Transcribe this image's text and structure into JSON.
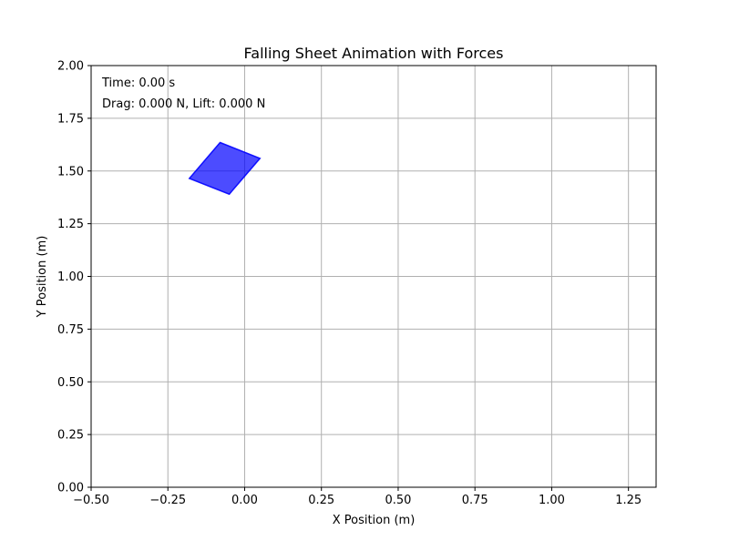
{
  "chart_data": {
    "type": "scatter",
    "title": "Falling Sheet Animation with Forces",
    "xlabel": "X Position (m)",
    "ylabel": "Y Position (m)",
    "xlim": [
      -0.5,
      1.34
    ],
    "ylim": [
      0.0,
      2.0
    ],
    "grid": true,
    "x_ticks": [
      -0.5,
      -0.25,
      0.0,
      0.25,
      0.5,
      0.75,
      1.0,
      1.25
    ],
    "x_tick_labels": [
      "−0.50",
      "−0.25",
      "0.00",
      "0.25",
      "0.50",
      "0.75",
      "1.00",
      "1.25"
    ],
    "y_ticks": [
      0.0,
      0.25,
      0.5,
      0.75,
      1.0,
      1.25,
      1.5,
      1.75,
      2.0
    ],
    "y_tick_labels": [
      "0.00",
      "0.25",
      "0.50",
      "0.75",
      "1.00",
      "1.25",
      "1.50",
      "1.75",
      "2.00"
    ],
    "annotations": [
      "Time: 0.00 s",
      "Drag: 0.000 N, Lift: 0.000 N"
    ],
    "sheet": {
      "color": "#0000ff",
      "vertices": [
        [
          -0.08,
          1.635
        ],
        [
          0.05,
          1.56
        ],
        [
          -0.05,
          1.39
        ],
        [
          -0.18,
          1.465
        ]
      ]
    }
  }
}
